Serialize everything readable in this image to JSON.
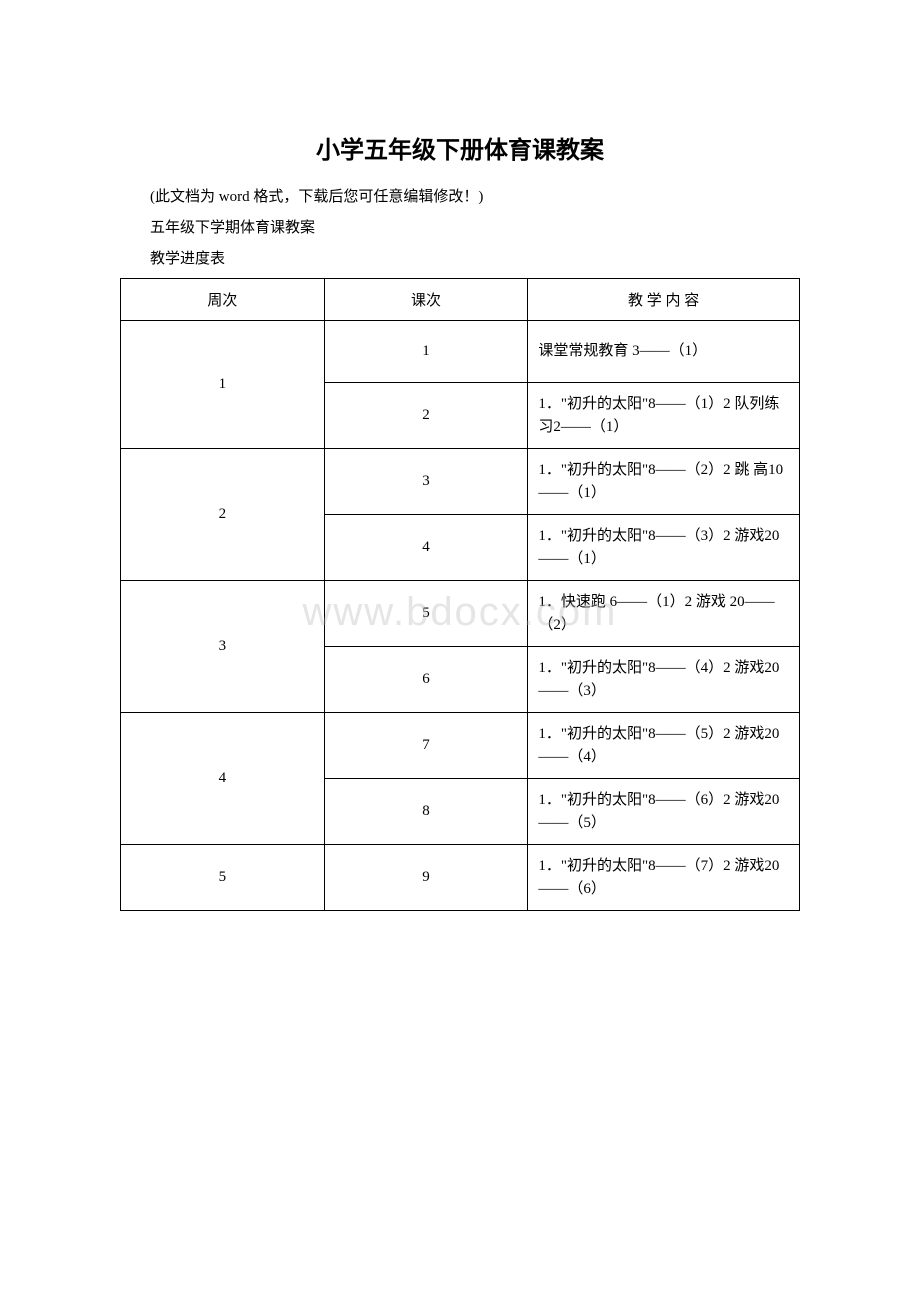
{
  "title": "小学五年级下册体育课教案",
  "line1": "(此文档为 word 格式，下载后您可任意编辑修改！)",
  "line2": "五年级下学期体育课教案",
  "line3": "教学进度表",
  "watermark": "www.bdocx.com",
  "header": {
    "week": "周次",
    "lesson": "课次",
    "content": "教 学 内 容"
  },
  "rows": [
    {
      "week": "1",
      "lesson": "1",
      "content": "课堂常规教育 3——（1）"
    },
    {
      "week": "",
      "lesson": "2",
      "content": "1．\"初升的太阳\"8——（1）2 队列练习2——（1）"
    },
    {
      "week": "2",
      "lesson": "3",
      "content": "1．\"初升的太阳\"8——（2）2 跳 高10——（1）"
    },
    {
      "week": "",
      "lesson": "4",
      "content": "1．\"初升的太阳\"8——（3）2 游戏20——（1）"
    },
    {
      "week": "3",
      "lesson": "5",
      "content": "1．快速跑 6——（1）2 游戏 20——（2）"
    },
    {
      "week": "",
      "lesson": "6",
      "content": "1．\"初升的太阳\"8——（4）2 游戏20——（3）"
    },
    {
      "week": "4",
      "lesson": "7",
      "content": "1．\"初升的太阳\"8——（5）2 游戏20——（4）"
    },
    {
      "week": "",
      "lesson": "8",
      "content": "1．\"初升的太阳\"8——（6）2 游戏20——（5）"
    },
    {
      "week": "5",
      "lesson": "9",
      "content": "1．\"初升的太阳\"8——（7）2 游戏20——（6）"
    }
  ]
}
